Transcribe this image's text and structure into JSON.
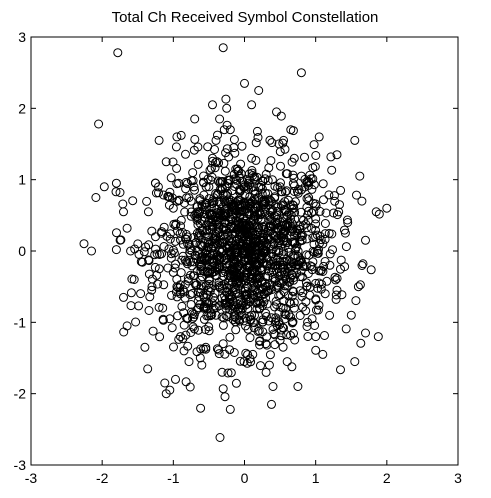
{
  "chart_data": {
    "type": "scatter",
    "title": "Total Ch Received Symbol Constellation",
    "xlabel": "",
    "ylabel": "",
    "xlim": [
      -3,
      3
    ],
    "ylim": [
      -3,
      3
    ],
    "xticks": [
      "-3",
      "-2",
      "-1",
      "0",
      "1",
      "2",
      "3"
    ],
    "yticks": [
      "-3",
      "-2",
      "-1",
      "0",
      "1",
      "2",
      "3"
    ],
    "grid": false,
    "marker": "open-circle",
    "marker_color": "#000000",
    "series": [
      {
        "points": [
          [
            -2.15,
            0.0
          ],
          [
            -2.05,
            1.78
          ],
          [
            -1.97,
            0.9
          ],
          [
            -1.8,
            0.95
          ],
          [
            -1.8,
            0.02
          ],
          [
            -1.78,
            2.78
          ],
          [
            -1.75,
            0.82
          ],
          [
            -1.7,
            0.55
          ],
          [
            -1.65,
            0.32
          ],
          [
            -1.7,
            -0.65
          ],
          [
            -1.65,
            -1.05
          ],
          [
            -1.6,
            -0.0
          ],
          [
            -1.55,
            -0.4
          ],
          [
            -1.5,
            0.1
          ],
          [
            -1.45,
            -0.15
          ],
          [
            -1.4,
            -1.35
          ],
          [
            -1.35,
            0.55
          ],
          [
            -1.3,
            -0.5
          ],
          [
            -1.25,
            0.2
          ],
          [
            -1.2,
            1.55
          ],
          [
            -1.15,
            -0.8
          ],
          [
            -1.05,
            -0.95
          ],
          [
            -1.0,
            0.6
          ],
          [
            -0.95,
            -0.5
          ],
          [
            -0.9,
            0.35
          ],
          [
            -1.12,
            -1.85
          ],
          [
            -1.1,
            -2.0
          ],
          [
            -1.05,
            -1.95
          ],
          [
            -0.97,
            -1.8
          ],
          [
            -0.85,
            -1.4
          ],
          [
            -0.78,
            -1.55
          ],
          [
            -0.75,
            -0.75
          ],
          [
            -0.7,
            -0.45
          ],
          [
            -0.65,
            0.0
          ],
          [
            -0.6,
            0.3
          ],
          [
            -0.55,
            0.65
          ],
          [
            -0.5,
            0.9
          ],
          [
            -0.45,
            1.3
          ],
          [
            -0.4,
            1.55
          ],
          [
            -0.35,
            1.85
          ],
          [
            -0.3,
            2.85
          ],
          [
            -0.25,
            2.0
          ],
          [
            -0.2,
            1.7
          ],
          [
            -0.15,
            1.45
          ],
          [
            -0.1,
            1.15
          ],
          [
            -0.05,
            0.85
          ],
          [
            0.0,
            0.55
          ],
          [
            0.05,
            0.2
          ],
          [
            0.1,
            -0.1
          ],
          [
            0.15,
            -0.4
          ],
          [
            0.2,
            -0.7
          ],
          [
            0.25,
            -1.0
          ],
          [
            0.3,
            -1.3
          ],
          [
            0.35,
            -1.6
          ],
          [
            0.4,
            -1.9
          ],
          [
            0.38,
            -2.15
          ],
          [
            -0.2,
            -2.22
          ],
          [
            -0.3,
            -1.93
          ],
          [
            0.0,
            2.35
          ],
          [
            0.1,
            2.05
          ],
          [
            0.2,
            2.25
          ],
          [
            0.8,
            2.5
          ],
          [
            0.55,
            1.55
          ],
          [
            0.7,
            1.3
          ],
          [
            0.8,
            1.05
          ],
          [
            0.9,
            0.75
          ],
          [
            1.0,
            0.45
          ],
          [
            1.1,
            0.1
          ],
          [
            1.2,
            -0.2
          ],
          [
            1.3,
            -0.55
          ],
          [
            1.35,
            0.85
          ],
          [
            1.45,
            0.4
          ],
          [
            1.5,
            -0.9
          ],
          [
            1.55,
            1.55
          ],
          [
            1.55,
            -1.55
          ],
          [
            1.6,
            -0.5
          ],
          [
            1.62,
            1.05
          ],
          [
            1.65,
            0.7
          ],
          [
            1.7,
            0.15
          ],
          [
            1.7,
            -1.15
          ],
          [
            1.85,
            0.55
          ],
          [
            1.88,
            -1.2
          ],
          [
            2.0,
            0.6
          ],
          [
            1.3,
            1.35
          ],
          [
            1.1,
            -1.45
          ],
          [
            0.75,
            -1.9
          ],
          [
            0.6,
            -1.55
          ],
          [
            -0.6,
            -1.6
          ],
          [
            -0.9,
            -1.2
          ],
          [
            -1.1,
            1.25
          ],
          [
            -1.25,
            0.95
          ],
          [
            -0.95,
            1.6
          ],
          [
            -0.7,
            1.85
          ],
          [
            -0.45,
            2.05
          ],
          [
            0.45,
            1.95
          ],
          [
            0.65,
            1.7
          ],
          [
            1.05,
            1.6
          ],
          [
            1.0,
            -1.2
          ],
          [
            0.95,
            -0.95
          ],
          [
            0.5,
            -1.25
          ],
          [
            -0.3,
            -1.3
          ],
          [
            -0.55,
            -1.1
          ],
          [
            -0.8,
            -0.95
          ],
          [
            -1.0,
            -0.3
          ],
          [
            -0.8,
            0.1
          ],
          [
            -0.6,
            -0.2
          ],
          [
            -0.4,
            0.15
          ],
          [
            -0.2,
            -0.35
          ],
          [
            0.0,
            0.0
          ],
          [
            0.2,
            0.3
          ],
          [
            0.4,
            0.1
          ],
          [
            0.6,
            -0.3
          ],
          [
            0.8,
            0.2
          ],
          [
            0.3,
            0.6
          ],
          [
            0.5,
            0.9
          ],
          [
            -0.3,
            0.5
          ],
          [
            -0.5,
            0.2
          ],
          [
            -0.1,
            -0.6
          ],
          [
            0.1,
            -0.9
          ],
          [
            0.3,
            -0.5
          ],
          [
            0.6,
            0.5
          ],
          [
            -0.7,
            0.5
          ],
          [
            -0.9,
            -0.6
          ],
          [
            0.7,
            -0.8
          ],
          [
            -0.2,
            1.0
          ],
          [
            0.1,
            1.3
          ],
          [
            -0.4,
            -0.9
          ],
          [
            0.4,
            -1.1
          ],
          [
            -0.1,
            0.3
          ],
          [
            0.15,
            -0.2
          ],
          [
            -0.25,
            -0.05
          ],
          [
            0.35,
            0.35
          ],
          [
            -0.45,
            0.7
          ],
          [
            0.55,
            -0.05
          ],
          [
            -0.65,
            -0.7
          ],
          [
            0.25,
            0.8
          ],
          [
            -0.35,
            -0.5
          ],
          [
            0.05,
            0.95
          ],
          [
            -0.15,
            0.65
          ],
          [
            0.45,
            -0.75
          ]
        ]
      }
    ]
  }
}
